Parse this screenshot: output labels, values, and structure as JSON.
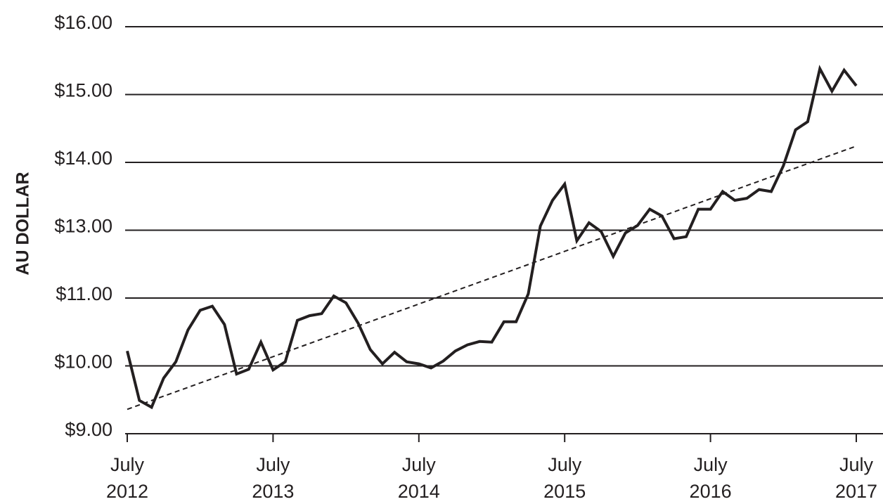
{
  "chart_data": {
    "type": "line",
    "y_label": "AU DOLLAR",
    "x": [
      "2012-07",
      "2012-08",
      "2012-09",
      "2012-10",
      "2012-11",
      "2012-12",
      "2013-01",
      "2013-02",
      "2013-03",
      "2013-04",
      "2013-05",
      "2013-06",
      "2013-07",
      "2013-08",
      "2013-09",
      "2013-10",
      "2013-11",
      "2013-12",
      "2014-01",
      "2014-02",
      "2014-03",
      "2014-04",
      "2014-05",
      "2014-06",
      "2014-07",
      "2014-08",
      "2014-09",
      "2014-10",
      "2014-11",
      "2014-12",
      "2015-01",
      "2015-02",
      "2015-03",
      "2015-04",
      "2015-05",
      "2015-06",
      "2015-07",
      "2015-08",
      "2015-09",
      "2015-10",
      "2015-11",
      "2015-12",
      "2016-01",
      "2016-02",
      "2016-03",
      "2016-04",
      "2016-05",
      "2016-06",
      "2016-07",
      "2016-08",
      "2016-09",
      "2016-10",
      "2016-11",
      "2016-12",
      "2017-01",
      "2017-02",
      "2017-03",
      "2017-04",
      "2017-05",
      "2017-06",
      "2017-07"
    ],
    "series": [
      {
        "color": "#231f20",
        "values": [
          10.22,
          9.49,
          9.39,
          9.82,
          10.06,
          10.53,
          10.82,
          10.88,
          10.61,
          9.88,
          9.95,
          10.35,
          9.94,
          10.06,
          10.67,
          10.74,
          10.77,
          11.06,
          10.93,
          10.63,
          10.24,
          10.03,
          10.2,
          10.06,
          10.03,
          9.97,
          10.07,
          10.22,
          10.31,
          10.36,
          10.35,
          10.65,
          10.65,
          11.12,
          13.06,
          13.44,
          13.68,
          12.69,
          13.11,
          12.96,
          12.23,
          12.92,
          13.07,
          13.31,
          13.21,
          12.75,
          12.81,
          13.31,
          13.31,
          13.57,
          13.44,
          13.47,
          13.6,
          13.57,
          13.95,
          14.48,
          14.6,
          15.38,
          15.05,
          15.36,
          15.13
        ]
      },
      {
        "color": "#231f20",
        "dash": "dashed",
        "x": [
          "2012-07",
          "2017-07"
        ],
        "values": [
          9.36,
          14.24
        ]
      }
    ],
    "xlim": [
      "2012-07",
      "2017-07"
    ],
    "xticks": [
      {
        "value": "2012-07",
        "label": "July 2012"
      },
      {
        "value": "2013-07",
        "label": "July 2013"
      },
      {
        "value": "2014-07",
        "label": "July 2014"
      },
      {
        "value": "2015-07",
        "label": "July 2015"
      },
      {
        "value": "2016-07",
        "label": "July 2016"
      },
      {
        "value": "2017-07",
        "label": "July 2017"
      }
    ],
    "ylim": [
      9,
      16
    ],
    "yticks": [
      {
        "value": 9,
        "label": "$9.00"
      },
      {
        "value": 10,
        "label": "$10.00"
      },
      {
        "value": 11,
        "label": "$11.00"
      },
      {
        "value": 13,
        "label": "$13.00"
      },
      {
        "value": 14,
        "label": "$14.00"
      },
      {
        "value": 15,
        "label": "$15.00"
      },
      {
        "value": 16,
        "label": "$16.00"
      }
    ],
    "grid": true
  }
}
